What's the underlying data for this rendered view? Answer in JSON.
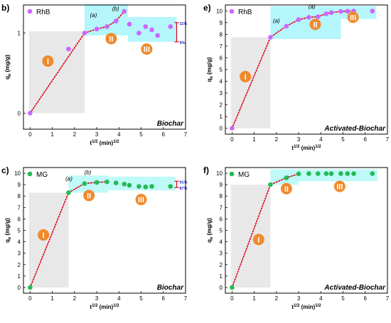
{
  "chart_data": [
    {
      "panel_label": "b)",
      "type": "scatter",
      "legend": "RhB",
      "marker_color": "#cc66ff",
      "region_color": "#9cf3fb",
      "ylabel": "q_e (mg/g)",
      "xlabel": "t^1/2 (min)^1/2",
      "corner_title": "Biochar",
      "xlim": [
        -0.3,
        7
      ],
      "x_ticks": [
        "0",
        "1",
        "2",
        "3",
        "4",
        "5",
        "6",
        "7"
      ],
      "ylim": [
        -0.2,
        1.35
      ],
      "y_ticks": [
        "0",
        "1"
      ],
      "points": [
        {
          "x": 0.0,
          "y": 0.0
        },
        {
          "x": 1.73,
          "y": 0.8
        },
        {
          "x": 2.45,
          "y": 1.0
        },
        {
          "x": 3.0,
          "y": 1.05
        },
        {
          "x": 3.46,
          "y": 1.08
        },
        {
          "x": 3.87,
          "y": 1.15
        },
        {
          "x": 4.24,
          "y": 1.27
        },
        {
          "x": 4.47,
          "y": 1.11
        },
        {
          "x": 4.9,
          "y": 1.0
        },
        {
          "x": 5.2,
          "y": 1.08
        },
        {
          "x": 5.48,
          "y": 1.04
        },
        {
          "x": 5.74,
          "y": 0.97
        },
        {
          "x": 6.32,
          "y": 1.08
        }
      ],
      "fit_line": [
        {
          "x": 0.0,
          "y": 0.0
        },
        {
          "x": 2.45,
          "y": 1.0
        },
        {
          "x": 3.0,
          "y": 1.05
        },
        {
          "x": 3.46,
          "y": 1.08
        },
        {
          "x": 3.87,
          "y": 1.15
        },
        {
          "x": 4.24,
          "y": 1.27
        }
      ],
      "stage_regions": [
        {
          "stage": "I",
          "color": "gray",
          "x": [
            -0.05,
            2.45
          ],
          "y": [
            0.0,
            1.02
          ]
        },
        {
          "stage": "II",
          "color": "cyan",
          "x": [
            2.45,
            4.4
          ],
          "y": [
            0.97,
            1.36
          ]
        },
        {
          "stage": "III",
          "color": "cyan",
          "x": [
            4.4,
            6.6
          ],
          "y": [
            0.89,
            1.2
          ]
        }
      ],
      "stage_badges": [
        {
          "text": "I",
          "x": 0.8,
          "y": 0.65
        },
        {
          "text": "II",
          "x": 3.65,
          "y": 0.93
        },
        {
          "text": "III",
          "x": 5.25,
          "y": 0.8
        }
      ],
      "annotations": [
        {
          "text": "(a)",
          "x": 2.85,
          "y": 1.2
        },
        {
          "text": "(b)",
          "x": 3.85,
          "y": 1.28
        }
      ],
      "range_bracket": {
        "x": 6.6,
        "y_top": 1.13,
        "y_bottom": 0.89,
        "top_label": "11%",
        "bottom_label": "9%"
      }
    },
    {
      "panel_label": "e)",
      "type": "scatter",
      "legend": "RhB",
      "marker_color": "#cc66ff",
      "region_color": "#9cf3fb",
      "ylabel": "q_e (mg/g)",
      "xlabel": "t^1/2 (min)^1/2",
      "corner_title": "Activated-Biochar",
      "xlim": [
        -0.3,
        7
      ],
      "x_ticks": [
        "0",
        "1",
        "2",
        "3",
        "4",
        "5",
        "6",
        "7"
      ],
      "ylim": [
        -0.5,
        10.5
      ],
      "y_ticks": [
        "0",
        "1",
        "2",
        "3",
        "4",
        "5",
        "6",
        "7",
        "8",
        "9",
        "10"
      ],
      "points": [
        {
          "x": 0.0,
          "y": 0.0
        },
        {
          "x": 1.73,
          "y": 7.75
        },
        {
          "x": 2.45,
          "y": 8.7
        },
        {
          "x": 3.0,
          "y": 9.25
        },
        {
          "x": 3.46,
          "y": 9.45
        },
        {
          "x": 3.87,
          "y": 9.5
        },
        {
          "x": 4.24,
          "y": 9.75
        },
        {
          "x": 4.47,
          "y": 9.85
        },
        {
          "x": 4.9,
          "y": 9.95
        },
        {
          "x": 5.2,
          "y": 9.97
        },
        {
          "x": 5.48,
          "y": 9.98
        },
        {
          "x": 6.32,
          "y": 9.98
        }
      ],
      "fit_line": [
        {
          "x": 0.0,
          "y": 0.0
        },
        {
          "x": 1.73,
          "y": 7.75
        },
        {
          "x": 2.45,
          "y": 8.7
        },
        {
          "x": 3.0,
          "y": 9.25
        },
        {
          "x": 3.46,
          "y": 9.45
        },
        {
          "x": 3.87,
          "y": 9.5
        },
        {
          "x": 4.24,
          "y": 9.75
        },
        {
          "x": 4.47,
          "y": 9.85
        },
        {
          "x": 4.9,
          "y": 9.95
        },
        {
          "x": 5.2,
          "y": 9.97
        },
        {
          "x": 5.48,
          "y": 9.98
        }
      ],
      "stage_regions": [
        {
          "stage": "I",
          "color": "gray",
          "x": [
            -0.05,
            1.73
          ],
          "y": [
            0.0,
            7.75
          ]
        },
        {
          "stage": "II",
          "color": "cyan",
          "x": [
            1.73,
            4.9
          ],
          "y": [
            7.6,
            10.4
          ]
        },
        {
          "stage": "III",
          "color": "cyan",
          "x": [
            4.9,
            6.5
          ],
          "y": [
            9.3,
            10.4
          ]
        }
      ],
      "stage_badges": [
        {
          "text": "I",
          "x": 0.6,
          "y": 4.4
        },
        {
          "text": "II",
          "x": 3.75,
          "y": 8.85
        },
        {
          "text": "III",
          "x": 5.45,
          "y": 9.45
        }
      ],
      "annotations": [
        {
          "text": "(a)",
          "x": 2.0,
          "y": 9.0
        },
        {
          "text": "(a)",
          "x": 3.6,
          "y": 10.2
        }
      ]
    },
    {
      "panel_label": "c)",
      "type": "scatter",
      "legend": "MG",
      "marker_color": "#22bb55",
      "region_color": "#aaf7f5",
      "ylabel": "q_e (mg/g)",
      "xlabel": "t^1/2 (min)^1/2",
      "corner_title": "Biochar",
      "xlim": [
        -0.3,
        7
      ],
      "x_ticks": [
        "0",
        "1",
        "2",
        "3",
        "4",
        "5",
        "6",
        "7"
      ],
      "ylim": [
        -0.5,
        10.5
      ],
      "y_ticks": [
        "0",
        "1",
        "2",
        "3",
        "4",
        "5",
        "6",
        "7",
        "8",
        "9",
        "10"
      ],
      "points": [
        {
          "x": 0.0,
          "y": 0.0
        },
        {
          "x": 1.73,
          "y": 8.3
        },
        {
          "x": 2.45,
          "y": 9.1
        },
        {
          "x": 3.0,
          "y": 9.2
        },
        {
          "x": 3.46,
          "y": 9.25
        },
        {
          "x": 3.87,
          "y": 9.15
        },
        {
          "x": 4.24,
          "y": 9.05
        },
        {
          "x": 4.47,
          "y": 8.95
        },
        {
          "x": 4.9,
          "y": 8.85
        },
        {
          "x": 5.2,
          "y": 8.8
        },
        {
          "x": 5.48,
          "y": 8.85
        },
        {
          "x": 6.32,
          "y": 8.85
        }
      ],
      "fit_line": [
        {
          "x": 0.0,
          "y": 0.0
        },
        {
          "x": 1.73,
          "y": 8.3
        },
        {
          "x": 2.45,
          "y": 9.1
        },
        {
          "x": 3.0,
          "y": 9.2
        },
        {
          "x": 3.46,
          "y": 9.25
        }
      ],
      "stage_regions": [
        {
          "stage": "I",
          "color": "gray",
          "x": [
            -0.05,
            1.73
          ],
          "y": [
            0.0,
            8.3
          ]
        },
        {
          "stage": "II",
          "color": "cyan",
          "x": [
            1.73,
            3.5
          ],
          "y": [
            8.3,
            9.8
          ]
        },
        {
          "stage": "III",
          "color": "cyan",
          "x": [
            3.5,
            6.55
          ],
          "y": [
            8.5,
            9.7
          ]
        }
      ],
      "stage_badges": [
        {
          "text": "I",
          "x": 0.6,
          "y": 4.6
        },
        {
          "text": "II",
          "x": 2.65,
          "y": 8.05
        },
        {
          "text": "III",
          "x": 5.0,
          "y": 7.7
        }
      ],
      "annotations": [
        {
          "text": "(a)",
          "x": 1.75,
          "y": 9.35
        },
        {
          "text": "(b)",
          "x": 2.6,
          "y": 9.9
        }
      ],
      "range_bracket": {
        "x": 6.6,
        "y_top": 9.3,
        "y_bottom": 8.75,
        "top_label": "91%",
        "bottom_label": "87%"
      }
    },
    {
      "panel_label": "f)",
      "type": "scatter",
      "legend": "MG",
      "marker_color": "#22bb55",
      "region_color": "#aaf7f5",
      "ylabel": "q_e (mg/g)",
      "xlabel": "t^1/2 (min)^1/2",
      "corner_title": "Activated-Biochar",
      "xlim": [
        -0.3,
        7
      ],
      "x_ticks": [
        "0",
        "1",
        "2",
        "3",
        "4",
        "5",
        "6",
        "7"
      ],
      "ylim": [
        -0.5,
        10.5
      ],
      "y_ticks": [
        "0",
        "1",
        "2",
        "3",
        "4",
        "5",
        "6",
        "7",
        "8",
        "9",
        "10"
      ],
      "points": [
        {
          "x": 0.0,
          "y": 0.0
        },
        {
          "x": 1.73,
          "y": 9.0
        },
        {
          "x": 2.45,
          "y": 9.6
        },
        {
          "x": 3.0,
          "y": 9.95
        },
        {
          "x": 3.46,
          "y": 9.97
        },
        {
          "x": 3.87,
          "y": 9.97
        },
        {
          "x": 4.24,
          "y": 9.97
        },
        {
          "x": 4.47,
          "y": 9.97
        },
        {
          "x": 4.9,
          "y": 9.97
        },
        {
          "x": 5.2,
          "y": 9.97
        },
        {
          "x": 5.48,
          "y": 9.97
        },
        {
          "x": 6.32,
          "y": 9.97
        }
      ],
      "fit_line": [
        {
          "x": 0.0,
          "y": 0.0
        },
        {
          "x": 1.73,
          "y": 9.0
        },
        {
          "x": 2.45,
          "y": 9.6
        },
        {
          "x": 3.0,
          "y": 9.95
        }
      ],
      "stage_regions": [
        {
          "stage": "I",
          "color": "gray",
          "x": [
            -0.05,
            1.73
          ],
          "y": [
            0.0,
            9.0
          ]
        },
        {
          "stage": "II",
          "color": "cyan",
          "x": [
            1.73,
            3.0
          ],
          "y": [
            9.0,
            10.35
          ]
        },
        {
          "stage": "III",
          "color": "cyan",
          "x": [
            3.0,
            6.55
          ],
          "y": [
            9.3,
            10.35
          ]
        }
      ],
      "stage_badges": [
        {
          "text": "I",
          "x": 1.2,
          "y": 4.2
        },
        {
          "text": "II",
          "x": 2.45,
          "y": 8.65
        },
        {
          "text": "III",
          "x": 4.85,
          "y": 8.85
        }
      ],
      "annotations": []
    }
  ]
}
